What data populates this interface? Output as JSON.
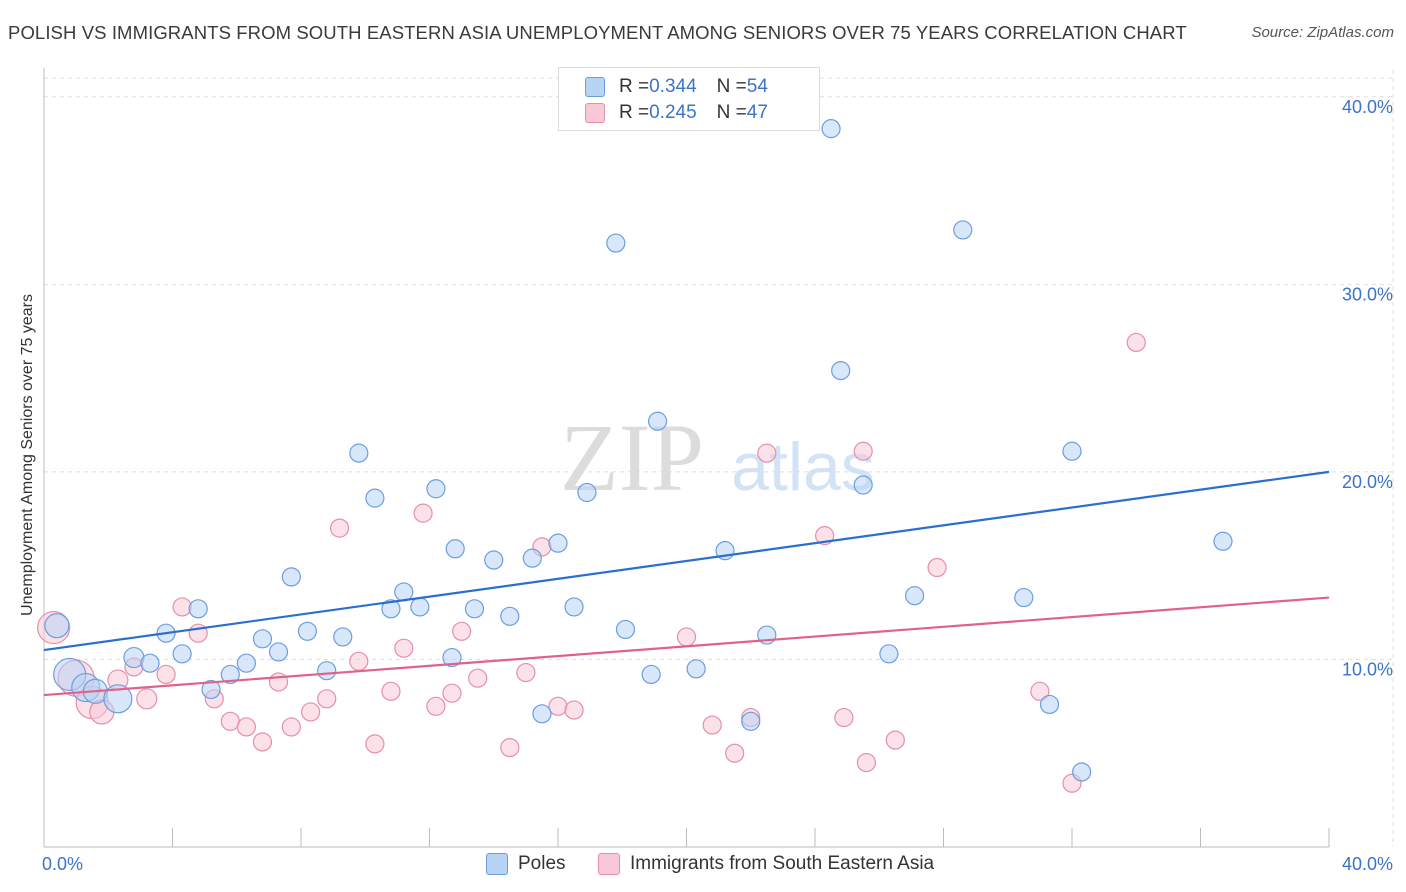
{
  "title": "POLISH VS IMMIGRANTS FROM SOUTH EASTERN ASIA UNEMPLOYMENT AMONG SENIORS OVER 75 YEARS CORRELATION CHART",
  "source": "Source: ZipAtlas.com",
  "watermark": {
    "zip": "ZIP",
    "atlas": "atlas"
  },
  "legend": {
    "poles": {
      "r_label": "R = ",
      "r_value": "0.344",
      "n_label": "N = ",
      "n_value": "54"
    },
    "immigrants": {
      "r_label": "R = ",
      "r_value": "0.245",
      "n_label": "N = ",
      "n_value": "47"
    }
  },
  "colors": {
    "poles_fill": "#b8d4f4",
    "poles_stroke": "#6b9ee0",
    "poles_line": "#2a6fcf",
    "imm_fill": "#f8c8d6",
    "imm_stroke": "#e58fab",
    "imm_line": "#e0628a",
    "tick_text": "#3b73c9"
  },
  "chart_data": {
    "type": "scatter",
    "title": "POLISH VS IMMIGRANTS FROM SOUTH EASTERN ASIA UNEMPLOYMENT AMONG SENIORS OVER 75 YEARS CORRELATION CHART",
    "xlabel": "",
    "ylabel": "Unemployment Among Seniors over 75 years",
    "xlim": [
      0,
      40
    ],
    "ylim": [
      0,
      41
    ],
    "x_tick_labels": [
      "0.0%",
      "40.0%"
    ],
    "y_ticks": [
      10,
      20,
      30,
      40
    ],
    "y_tick_labels": [
      "10.0%",
      "20.0%",
      "30.0%",
      "40.0%"
    ],
    "series": [
      {
        "name": "Poles",
        "trend": {
          "x": [
            0,
            40
          ],
          "y": [
            10.5,
            20.0
          ]
        },
        "points": [
          [
            0.4,
            11.8,
            12
          ],
          [
            0.8,
            9.2,
            16
          ],
          [
            1.3,
            8.5,
            14
          ],
          [
            1.6,
            8.3,
            12
          ],
          [
            2.3,
            7.9,
            14
          ],
          [
            2.8,
            10.1,
            10
          ],
          [
            3.3,
            9.8,
            9
          ],
          [
            3.8,
            11.4,
            9
          ],
          [
            4.3,
            10.3,
            9
          ],
          [
            4.8,
            12.7,
            9
          ],
          [
            5.2,
            8.4,
            9
          ],
          [
            5.8,
            9.2,
            9
          ],
          [
            6.3,
            9.8,
            9
          ],
          [
            6.8,
            11.1,
            9
          ],
          [
            7.3,
            10.4,
            9
          ],
          [
            7.7,
            14.4,
            9
          ],
          [
            8.2,
            11.5,
            9
          ],
          [
            8.8,
            9.4,
            9
          ],
          [
            9.3,
            11.2,
            9
          ],
          [
            9.8,
            21.0,
            9
          ],
          [
            10.3,
            18.6,
            9
          ],
          [
            10.8,
            12.7,
            9
          ],
          [
            11.2,
            13.6,
            9
          ],
          [
            11.7,
            12.8,
            9
          ],
          [
            12.2,
            19.1,
            9
          ],
          [
            12.7,
            10.1,
            9
          ],
          [
            12.8,
            15.9,
            9
          ],
          [
            13.4,
            12.7,
            9
          ],
          [
            14.0,
            15.3,
            9
          ],
          [
            14.5,
            12.3,
            9
          ],
          [
            15.2,
            15.4,
            9
          ],
          [
            15.5,
            7.1,
            9
          ],
          [
            16.0,
            16.2,
            9
          ],
          [
            16.5,
            12.8,
            9
          ],
          [
            16.9,
            18.9,
            9
          ],
          [
            17.8,
            32.2,
            9
          ],
          [
            18.1,
            11.6,
            9
          ],
          [
            18.9,
            9.2,
            9
          ],
          [
            19.1,
            22.7,
            9
          ],
          [
            20.3,
            9.5,
            9
          ],
          [
            21.2,
            15.8,
            9
          ],
          [
            22.0,
            6.7,
            9
          ],
          [
            22.5,
            11.3,
            9
          ],
          [
            24.5,
            38.3,
            9
          ],
          [
            24.8,
            25.4,
            9
          ],
          [
            25.5,
            19.3,
            9
          ],
          [
            26.3,
            10.3,
            9
          ],
          [
            27.1,
            13.4,
            9
          ],
          [
            28.6,
            32.9,
            9
          ],
          [
            30.5,
            13.3,
            9
          ],
          [
            31.3,
            7.6,
            9
          ],
          [
            32.0,
            21.1,
            9
          ],
          [
            32.3,
            4.0,
            9
          ],
          [
            36.7,
            16.3,
            9
          ]
        ]
      },
      {
        "name": "Immigrants from South Eastern Asia",
        "trend": {
          "x": [
            0,
            40
          ],
          "y": [
            8.1,
            13.3
          ]
        },
        "points": [
          [
            0.3,
            11.7,
            16
          ],
          [
            1.0,
            9.0,
            18
          ],
          [
            1.5,
            7.7,
            16
          ],
          [
            1.8,
            7.2,
            12
          ],
          [
            2.3,
            8.9,
            10
          ],
          [
            2.8,
            9.6,
            9
          ],
          [
            3.2,
            7.9,
            10
          ],
          [
            3.8,
            9.2,
            9
          ],
          [
            4.3,
            12.8,
            9
          ],
          [
            4.8,
            11.4,
            9
          ],
          [
            5.3,
            7.9,
            9
          ],
          [
            5.8,
            6.7,
            9
          ],
          [
            6.3,
            6.4,
            9
          ],
          [
            6.8,
            5.6,
            9
          ],
          [
            7.3,
            8.8,
            9
          ],
          [
            7.7,
            6.4,
            9
          ],
          [
            8.3,
            7.2,
            9
          ],
          [
            8.8,
            7.9,
            9
          ],
          [
            9.2,
            17.0,
            9
          ],
          [
            9.8,
            9.9,
            9
          ],
          [
            10.3,
            5.5,
            9
          ],
          [
            10.8,
            8.3,
            9
          ],
          [
            11.2,
            10.6,
            9
          ],
          [
            11.8,
            17.8,
            9
          ],
          [
            12.2,
            7.5,
            9
          ],
          [
            12.7,
            8.2,
            9
          ],
          [
            13.0,
            11.5,
            9
          ],
          [
            13.5,
            9.0,
            9
          ],
          [
            14.5,
            5.3,
            9
          ],
          [
            15.0,
            9.3,
            9
          ],
          [
            15.5,
            16.0,
            9
          ],
          [
            16.0,
            7.5,
            9
          ],
          [
            16.5,
            7.3,
            9
          ],
          [
            20.0,
            11.2,
            9
          ],
          [
            20.8,
            6.5,
            9
          ],
          [
            21.5,
            5.0,
            9
          ],
          [
            22.0,
            6.9,
            9
          ],
          [
            22.5,
            21.0,
            9
          ],
          [
            24.3,
            16.6,
            9
          ],
          [
            24.9,
            6.9,
            9
          ],
          [
            25.5,
            21.1,
            9
          ],
          [
            25.6,
            4.5,
            9
          ],
          [
            26.5,
            5.7,
            9
          ],
          [
            27.8,
            14.9,
            9
          ],
          [
            31.0,
            8.3,
            9
          ],
          [
            32.0,
            3.4,
            9
          ],
          [
            34.0,
            26.9,
            9
          ]
        ]
      }
    ]
  }
}
